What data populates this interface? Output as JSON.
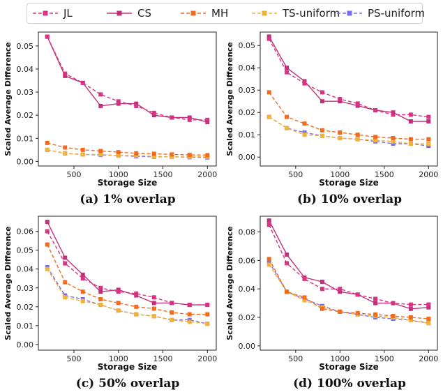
{
  "legend": [
    {
      "name": "JL",
      "color": "#d63384",
      "style": "dashed"
    },
    {
      "name": "CS",
      "color": "#c2307a",
      "style": "solid"
    },
    {
      "name": "MH",
      "color": "#f26b1d",
      "style": "dashed"
    },
    {
      "name": "TS-uniform",
      "color": "#f2b233",
      "style": "dashed"
    },
    {
      "name": "PS-uniform",
      "color": "#7b6cf0",
      "style": "dashed"
    }
  ],
  "chart_data": [
    {
      "type": "line",
      "caption": "(a) 1% overlap",
      "xlabel": "Storage Size",
      "ylabel": "Scaled Average Difference",
      "xlim": [
        100,
        2100
      ],
      "ylim": [
        -0.002,
        0.056
      ],
      "xticks": [
        500,
        1000,
        1500,
        2000
      ],
      "xtick_labels": [
        "500",
        "1000",
        "1500",
        "2000"
      ],
      "yticks": [
        0.0,
        0.01,
        0.02,
        0.03,
        0.04,
        0.05
      ],
      "ytick_labels": [
        "0.00",
        "0.01",
        "0.02",
        "0.03",
        "0.04",
        "0.05"
      ],
      "x": [
        200,
        400,
        600,
        800,
        1000,
        1200,
        1400,
        1600,
        1800,
        2000
      ],
      "series": [
        {
          "name": "JL",
          "values": [
            0.054,
            0.038,
            0.034,
            0.029,
            0.026,
            0.024,
            0.021,
            0.019,
            0.018,
            0.018
          ]
        },
        {
          "name": "CS",
          "values": [
            0.054,
            0.037,
            0.034,
            0.024,
            0.025,
            0.025,
            0.02,
            0.019,
            0.019,
            0.017
          ]
        },
        {
          "name": "MH",
          "values": [
            0.008,
            0.006,
            0.005,
            0.0045,
            0.004,
            0.0035,
            0.0033,
            0.003,
            0.0028,
            0.0027
          ]
        },
        {
          "name": "TS-uniform",
          "values": [
            0.005,
            0.0035,
            0.003,
            0.003,
            0.0025,
            0.0025,
            0.0022,
            0.002,
            0.002,
            0.002
          ]
        },
        {
          "name": "PS-uniform",
          "values": [
            0.005,
            0.0035,
            0.003,
            0.0028,
            0.0025,
            0.0022,
            0.002,
            0.002,
            0.0018,
            0.0017
          ]
        }
      ]
    },
    {
      "type": "line",
      "caption": "(b) 10% overlap",
      "xlabel": "Storage Size",
      "ylabel": "Scaled Average Difference",
      "xlim": [
        100,
        2100
      ],
      "ylim": [
        -0.004,
        0.056
      ],
      "xticks": [
        500,
        1000,
        1500,
        2000
      ],
      "xtick_labels": [
        "500",
        "1000",
        "1500",
        "2000"
      ],
      "yticks": [
        0.0,
        0.01,
        0.02,
        0.03,
        0.04,
        0.05
      ],
      "ytick_labels": [
        "0.00",
        "0.01",
        "0.02",
        "0.03",
        "0.04",
        "0.05"
      ],
      "x": [
        200,
        400,
        600,
        800,
        1000,
        1200,
        1400,
        1600,
        1800,
        2000
      ],
      "series": [
        {
          "name": "JL",
          "values": [
            0.053,
            0.038,
            0.033,
            0.029,
            0.026,
            0.024,
            0.021,
            0.019,
            0.019,
            0.018
          ]
        },
        {
          "name": "CS",
          "values": [
            0.054,
            0.04,
            0.034,
            0.025,
            0.025,
            0.023,
            0.021,
            0.02,
            0.016,
            0.016
          ]
        },
        {
          "name": "MH",
          "values": [
            0.029,
            0.018,
            0.015,
            0.012,
            0.011,
            0.01,
            0.009,
            0.0085,
            0.008,
            0.008
          ]
        },
        {
          "name": "TS-uniform",
          "values": [
            0.018,
            0.013,
            0.01,
            0.0095,
            0.0085,
            0.008,
            0.0075,
            0.007,
            0.006,
            0.006
          ]
        },
        {
          "name": "PS-uniform",
          "values": [
            0.018,
            0.013,
            0.011,
            0.0095,
            0.0085,
            0.008,
            0.007,
            0.006,
            0.006,
            0.005
          ]
        }
      ]
    },
    {
      "type": "line",
      "caption": "(c) 50% overlap",
      "xlabel": "Storage Size",
      "ylabel": "Scaled Average Difference",
      "xlim": [
        100,
        2100
      ],
      "ylim": [
        -0.003,
        0.068
      ],
      "xticks": [
        500,
        1000,
        1500,
        2000
      ],
      "xtick_labels": [
        "500",
        "1000",
        "1500",
        "2000"
      ],
      "yticks": [
        0.0,
        0.01,
        0.02,
        0.03,
        0.04,
        0.05,
        0.06
      ],
      "ytick_labels": [
        "0.00",
        "0.01",
        "0.02",
        "0.03",
        "0.04",
        "0.05",
        "0.06"
      ],
      "x": [
        200,
        400,
        600,
        800,
        1000,
        1200,
        1400,
        1600,
        1800,
        2000
      ],
      "series": [
        {
          "name": "JL",
          "values": [
            0.06,
            0.043,
            0.035,
            0.03,
            0.028,
            0.027,
            0.025,
            0.022,
            0.021,
            0.021
          ]
        },
        {
          "name": "CS",
          "values": [
            0.065,
            0.046,
            0.037,
            0.028,
            0.029,
            0.026,
            0.022,
            0.022,
            0.021,
            0.021
          ]
        },
        {
          "name": "MH",
          "values": [
            0.053,
            0.033,
            0.028,
            0.024,
            0.022,
            0.02,
            0.019,
            0.017,
            0.016,
            0.016
          ]
        },
        {
          "name": "TS-uniform",
          "values": [
            0.04,
            0.025,
            0.023,
            0.021,
            0.018,
            0.016,
            0.015,
            0.013,
            0.012,
            0.011
          ]
        },
        {
          "name": "PS-uniform",
          "values": [
            0.041,
            0.026,
            0.024,
            0.021,
            0.018,
            0.016,
            0.015,
            0.013,
            0.013,
            0.011
          ]
        }
      ]
    },
    {
      "type": "line",
      "caption": "(d) 100% overlap",
      "xlabel": "Storage Size",
      "ylabel": "Scaled Average Difference",
      "xlim": [
        100,
        2100
      ],
      "ylim": [
        -0.003,
        0.091
      ],
      "xticks": [
        500,
        1000,
        1500,
        2000
      ],
      "xtick_labels": [
        "500",
        "1000",
        "1500",
        "2000"
      ],
      "yticks": [
        0.0,
        0.02,
        0.04,
        0.06,
        0.08
      ],
      "ytick_labels": [
        "0.00",
        "0.02",
        "0.04",
        "0.06",
        "0.08"
      ],
      "x": [
        200,
        400,
        600,
        800,
        1000,
        1200,
        1400,
        1600,
        1800,
        2000
      ],
      "series": [
        {
          "name": "JL",
          "values": [
            0.085,
            0.058,
            0.047,
            0.04,
            0.04,
            0.036,
            0.033,
            0.03,
            0.029,
            0.029
          ]
        },
        {
          "name": "CS",
          "values": [
            0.088,
            0.064,
            0.048,
            0.045,
            0.038,
            0.036,
            0.03,
            0.03,
            0.026,
            0.027
          ]
        },
        {
          "name": "MH",
          "values": [
            0.061,
            0.038,
            0.034,
            0.026,
            0.024,
            0.023,
            0.022,
            0.021,
            0.02,
            0.019
          ]
        },
        {
          "name": "TS-uniform",
          "values": [
            0.057,
            0.038,
            0.032,
            0.027,
            0.024,
            0.022,
            0.021,
            0.02,
            0.018,
            0.016
          ]
        },
        {
          "name": "PS-uniform",
          "values": [
            0.059,
            0.038,
            0.033,
            0.028,
            0.024,
            0.022,
            0.02,
            0.019,
            0.018,
            0.016
          ]
        }
      ]
    }
  ]
}
